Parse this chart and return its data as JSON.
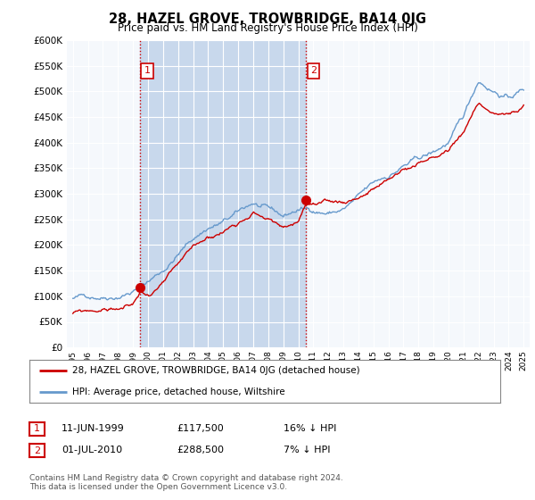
{
  "title": "28, HAZEL GROVE, TROWBRIDGE, BA14 0JG",
  "subtitle": "Price paid vs. HM Land Registry's House Price Index (HPI)",
  "ylabel_ticks": [
    "£0",
    "£50K",
    "£100K",
    "£150K",
    "£200K",
    "£250K",
    "£300K",
    "£350K",
    "£400K",
    "£450K",
    "£500K",
    "£550K",
    "£600K"
  ],
  "ylim": [
    0,
    600000
  ],
  "ytick_values": [
    0,
    50000,
    100000,
    150000,
    200000,
    250000,
    300000,
    350000,
    400000,
    450000,
    500000,
    550000,
    600000
  ],
  "background_color": "#ffffff",
  "plot_background": "#e8eef5",
  "plot_background_white": "#f5f8fc",
  "grid_color": "#ffffff",
  "red_line_color": "#cc0000",
  "blue_line_color": "#6699cc",
  "vline_color": "#cc0000",
  "shading_color": "#c8d8ec",
  "legend_label_red": "28, HAZEL GROVE, TROWBRIDGE, BA14 0JG (detached house)",
  "legend_label_blue": "HPI: Average price, detached house, Wiltshire",
  "transaction1_date": "11-JUN-1999",
  "transaction1_price": "£117,500",
  "transaction1_note": "16% ↓ HPI",
  "transaction2_date": "01-JUL-2010",
  "transaction2_price": "£288,500",
  "transaction2_note": "7% ↓ HPI",
  "footer": "Contains HM Land Registry data © Crown copyright and database right 2024.\nThis data is licensed under the Open Government Licence v3.0.",
  "transaction1_year": 1999.45,
  "transaction2_year": 2010.5
}
